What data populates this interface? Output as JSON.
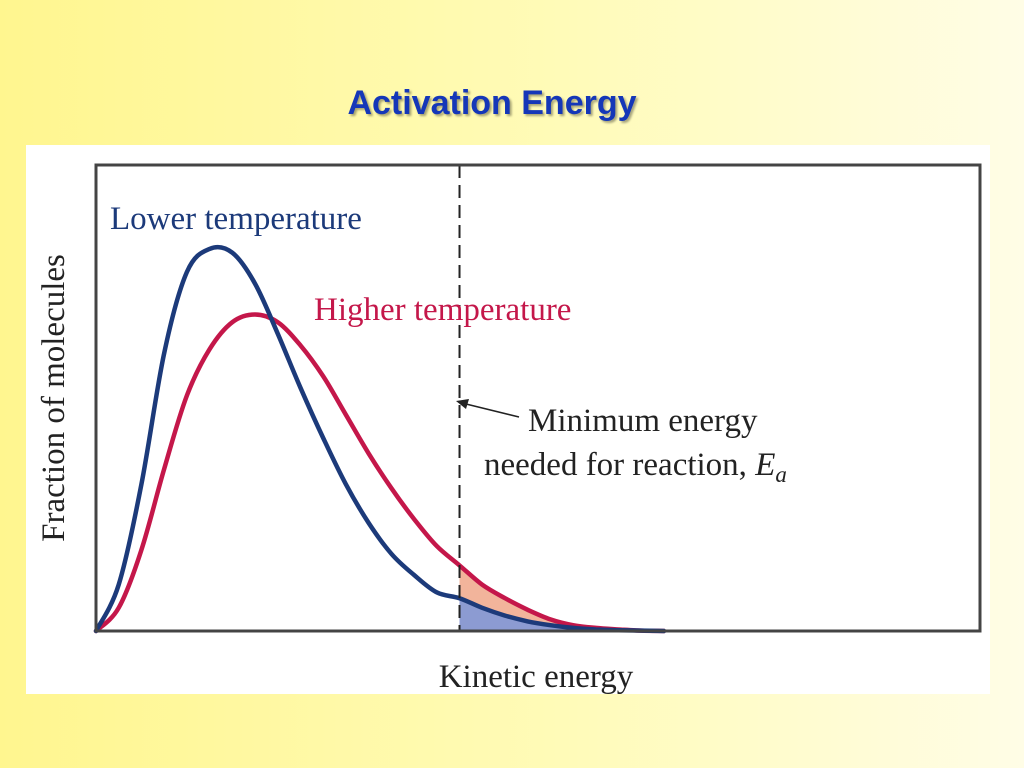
{
  "slide": {
    "title": "Activation Energy"
  },
  "chart_data": {
    "type": "line",
    "xlabel": "Kinetic energy",
    "ylabel": "Fraction of molecules",
    "threshold_marker": {
      "x": 3.2
    },
    "annotation": {
      "line1": "Minimum energy",
      "line2_prefix": "needed for reaction, ",
      "symbol": "E",
      "subscript": "a"
    },
    "series": [
      {
        "name": "Lower temperature",
        "color": "#1c3a7a",
        "shade_color": "#8c9bd2",
        "x": [
          0,
          0.2,
          0.4,
          0.6,
          0.8,
          1.0,
          1.2,
          1.4,
          1.6,
          1.8,
          2.0,
          2.2,
          2.4,
          2.6,
          2.8,
          3.0,
          3.2,
          3.4,
          3.6,
          3.8,
          4.0,
          4.2,
          4.4,
          4.6,
          4.8,
          5.0
        ],
        "y": [
          0,
          0.12,
          0.38,
          0.72,
          0.93,
          0.99,
          0.98,
          0.9,
          0.77,
          0.63,
          0.5,
          0.38,
          0.28,
          0.2,
          0.145,
          0.1,
          0.085,
          0.06,
          0.04,
          0.025,
          0.015,
          0.008,
          0.004,
          0.002,
          0.001,
          0
        ]
      },
      {
        "name": "Higher temperature",
        "color": "#c4174a",
        "shade_color": "#f2b49b",
        "x": [
          0,
          0.2,
          0.4,
          0.6,
          0.8,
          1.0,
          1.2,
          1.4,
          1.6,
          1.8,
          2.0,
          2.2,
          2.4,
          2.6,
          2.8,
          3.0,
          3.2,
          3.4,
          3.6,
          3.8,
          4.0,
          4.2,
          4.4,
          4.6,
          4.8,
          5.0
        ],
        "y": [
          0,
          0.06,
          0.21,
          0.42,
          0.61,
          0.73,
          0.8,
          0.82,
          0.8,
          0.74,
          0.66,
          0.56,
          0.46,
          0.37,
          0.29,
          0.22,
          0.17,
          0.12,
          0.085,
          0.055,
          0.03,
          0.015,
          0.008,
          0.004,
          0.001,
          0
        ]
      }
    ]
  }
}
